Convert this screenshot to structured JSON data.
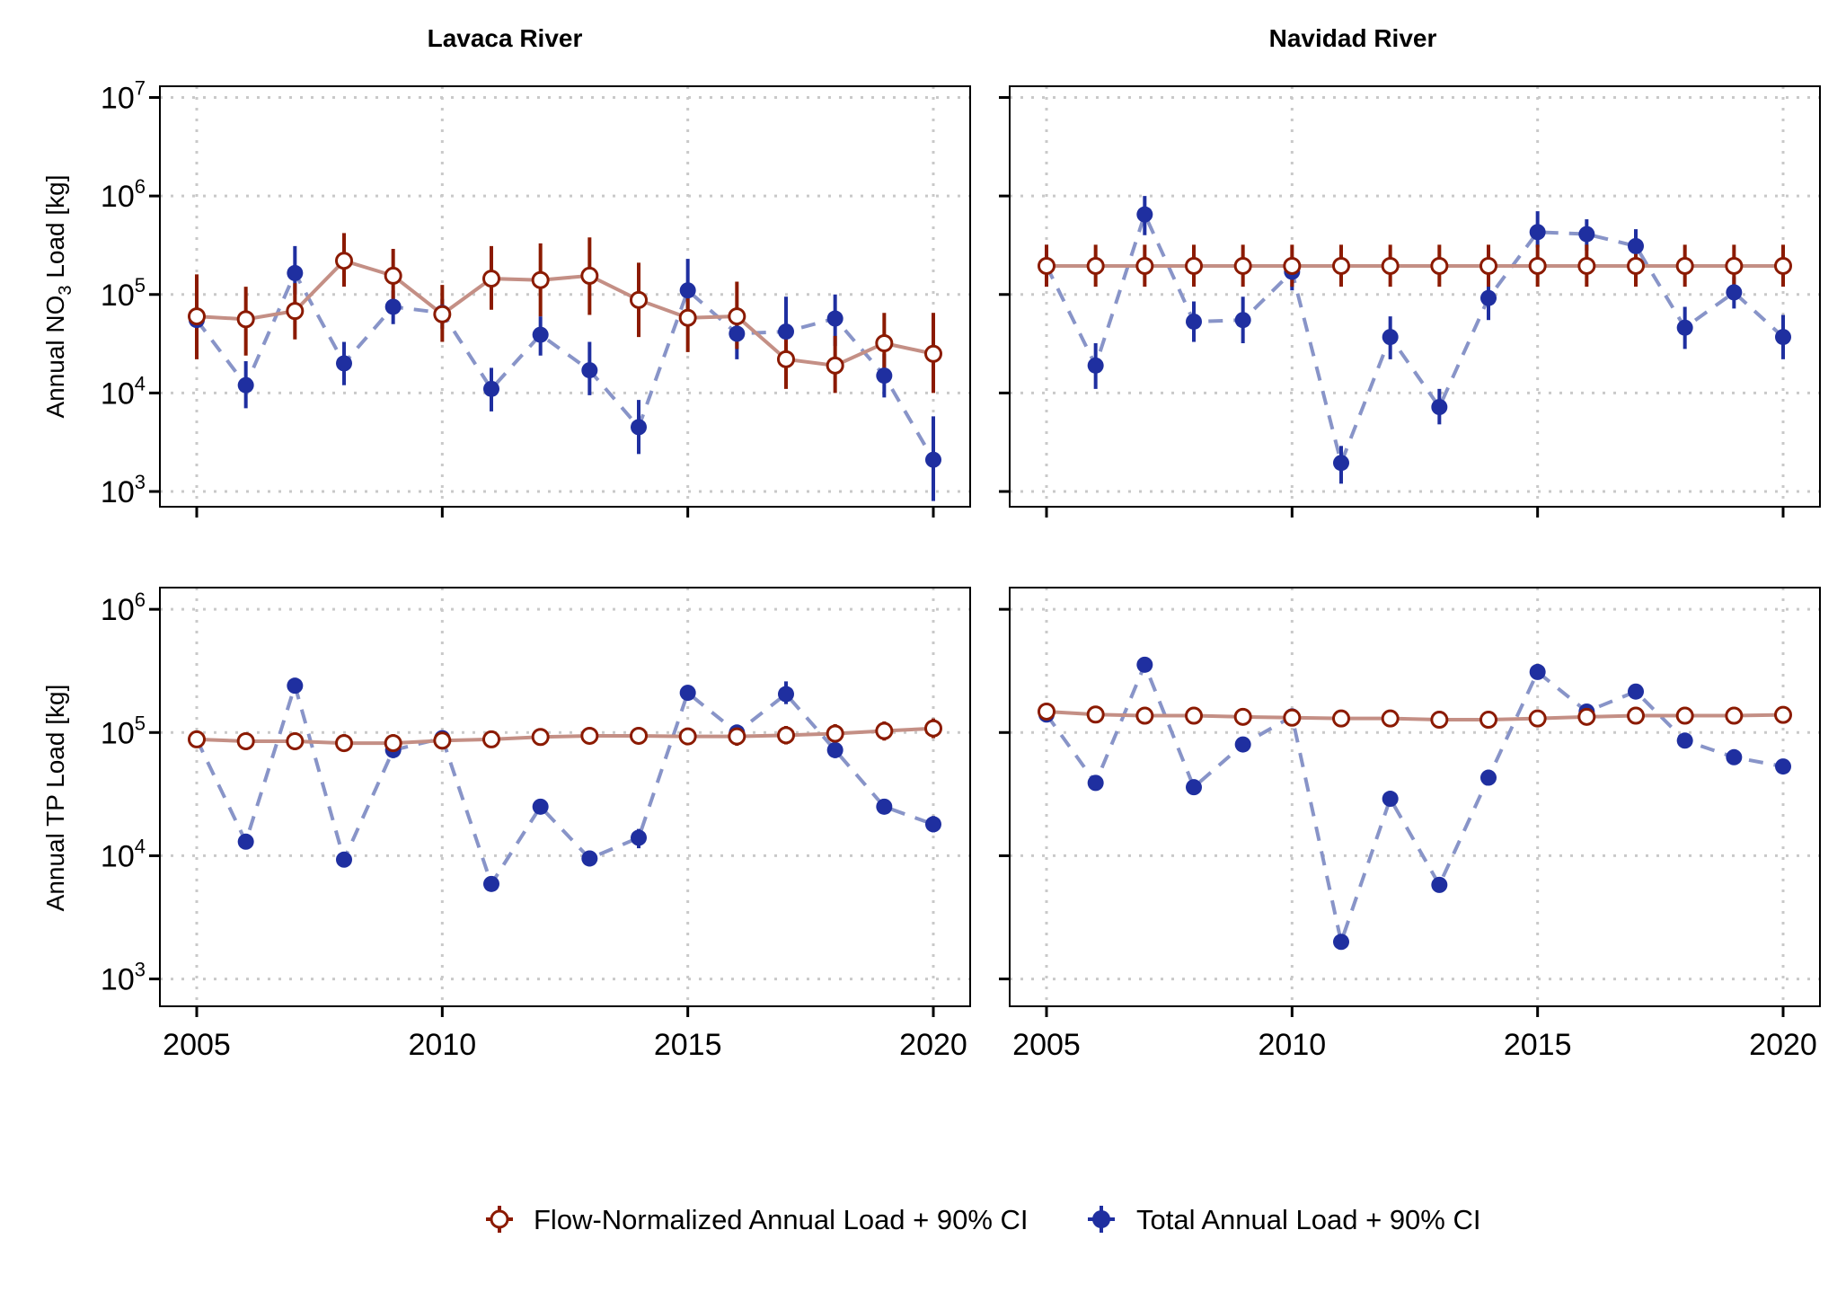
{
  "chart_data": {
    "type": "scatter",
    "facets": {
      "columns": [
        "Lavaca River",
        "Navidad River"
      ],
      "rows": [
        {
          "key": "no3",
          "ylabel_prefix": "Annual NO",
          "ylabel_sub": "3",
          "ylabel_suffix": " Load [kg]",
          "scale": "log10",
          "ylim": [
            700,
            13000000
          ],
          "ticks": [
            {
              "value": 1000,
              "base": "10",
              "exp": "3"
            },
            {
              "value": 10000,
              "base": "10",
              "exp": "4"
            },
            {
              "value": 100000,
              "base": "10",
              "exp": "5"
            },
            {
              "value": 1000000,
              "base": "10",
              "exp": "6"
            },
            {
              "value": 10000000,
              "base": "10",
              "exp": "7"
            }
          ]
        },
        {
          "key": "tp",
          "ylabel": "Annual TP Load [kg]",
          "scale": "log10",
          "ylim": [
            600,
            1500000
          ],
          "ticks": [
            {
              "value": 1000,
              "base": "10",
              "exp": "3"
            },
            {
              "value": 10000,
              "base": "10",
              "exp": "4"
            },
            {
              "value": 100000,
              "base": "10",
              "exp": "5"
            },
            {
              "value": 1000000,
              "base": "10",
              "exp": "6"
            }
          ]
        }
      ]
    },
    "x": [
      2005,
      2006,
      2007,
      2008,
      2009,
      2010,
      2011,
      2012,
      2013,
      2014,
      2015,
      2016,
      2017,
      2018,
      2019,
      2020
    ],
    "xlim": [
      2004.25,
      2020.75
    ],
    "xticks": [
      "2005",
      "2010",
      "2015",
      "2020"
    ],
    "grid": true,
    "legend": {
      "position": "bottom",
      "entries": [
        "Flow-Normalized Annual Load + 90% CI",
        "Total Annual Load + 90% CI"
      ]
    },
    "colors": {
      "flow_normalized": "#8b1a00",
      "flow_normalized_line": "#c48f85",
      "total": "#1f2fa0",
      "total_line": "#8894c8"
    },
    "panels": [
      {
        "row": "no3",
        "column": "Lavaca River",
        "series": [
          {
            "name": "Flow-Normalized Annual Load + 90% CI",
            "values": [
              60000,
              56000,
              68000,
              220000,
              155000,
              63000,
              145000,
              140000,
              155000,
              88000,
              58000,
              60000,
              22000,
              19000,
              32000,
              25000
            ],
            "lower": [
              22000,
              24000,
              35000,
              120000,
              80000,
              33000,
              70000,
              60000,
              62000,
              37000,
              26000,
              28000,
              11000,
              10000,
              15000,
              10000
            ],
            "upper": [
              160000,
              120000,
              130000,
              420000,
              290000,
              125000,
              310000,
              330000,
              380000,
              210000,
              130000,
              135000,
              45000,
              38000,
              65000,
              65000
            ]
          },
          {
            "name": "Total Annual Load + 90% CI",
            "values": [
              55000,
              12000,
              165000,
              20000,
              75000,
              65000,
              11000,
              39000,
              17000,
              4500,
              110000,
              40000,
              42000,
              57000,
              15000,
              2100
            ],
            "lower": [
              35000,
              7000,
              100000,
              12000,
              50000,
              45000,
              6500,
              24000,
              9500,
              2400,
              60000,
              22000,
              25000,
              30000,
              9000,
              800
            ],
            "upper": [
              80000,
              21000,
              310000,
              33000,
              110000,
              90000,
              18000,
              60000,
              33000,
              8500,
              230000,
              60000,
              95000,
              100000,
              25000,
              5800
            ]
          }
        ]
      },
      {
        "row": "no3",
        "column": "Navidad River",
        "series": [
          {
            "name": "Flow-Normalized Annual Load + 90% CI",
            "values": [
              195000,
              195000,
              195000,
              195000,
              195000,
              195000,
              195000,
              195000,
              195000,
              195000,
              195000,
              195000,
              195000,
              195000,
              195000,
              195000
            ],
            "lower": [
              120000,
              120000,
              120000,
              120000,
              120000,
              120000,
              120000,
              120000,
              120000,
              120000,
              120000,
              120000,
              120000,
              120000,
              120000,
              120000
            ],
            "upper": [
              320000,
              320000,
              320000,
              320000,
              320000,
              320000,
              320000,
              320000,
              320000,
              320000,
              320000,
              320000,
              320000,
              320000,
              320000,
              320000
            ]
          },
          {
            "name": "Total Annual Load + 90% CI",
            "values": [
              195000,
              19000,
              650000,
              53000,
              55000,
              170000,
              1950,
              37000,
              7200,
              92000,
              430000,
              410000,
              310000,
              46000,
              105000,
              37000
            ],
            "lower": [
              120000,
              11000,
              400000,
              33000,
              32000,
              110000,
              1200,
              22000,
              4800,
              55000,
              300000,
              280000,
              200000,
              28000,
              72000,
              22000
            ],
            "upper": [
              320000,
              32000,
              1000000,
              85000,
              95000,
              240000,
              2900,
              60000,
              11000,
              150000,
              700000,
              580000,
              460000,
              75000,
              150000,
              62000
            ]
          }
        ]
      },
      {
        "row": "tp",
        "column": "Lavaca River",
        "series": [
          {
            "name": "Flow-Normalized Annual Load + 90% CI",
            "values": [
              88000,
              85000,
              85000,
              82000,
              82000,
              86000,
              88000,
              92000,
              94000,
              94000,
              93000,
              93000,
              95000,
              98000,
              103000,
              108000
            ],
            "lower": [
              75000,
              72000,
              72000,
              70000,
              70000,
              73000,
              75000,
              79000,
              81000,
              81000,
              80000,
              78000,
              80000,
              82000,
              86000,
              90000
            ],
            "upper": [
              103000,
              100000,
              100000,
              97000,
              97000,
              101000,
              103000,
              107000,
              110000,
              110000,
              109000,
              110000,
              113000,
              117000,
              123000,
              130000
            ]
          },
          {
            "name": "Total Annual Load + 90% CI",
            "values": [
              88000,
              13000,
              240000,
              9300,
              72000,
              90000,
              5900,
              25000,
              9500,
              14000,
              210000,
              100000,
              205000,
              72000,
              25000,
              18000
            ],
            "lower": [
              80000,
              12000,
              210000,
              8500,
              62000,
              80000,
              5400,
              22000,
              8200,
              11500,
              190000,
              90000,
              170000,
              62000,
              22500,
              15500
            ],
            "upper": [
              96000,
              14500,
              275000,
              10000,
              82000,
              100000,
              6400,
              28000,
              11000,
              16500,
              235000,
              112000,
              260000,
              82000,
              28000,
              21000
            ]
          }
        ]
      },
      {
        "row": "tp",
        "column": "Navidad River",
        "series": [
          {
            "name": "Flow-Normalized Annual Load + 90% CI",
            "values": [
              148000,
              140000,
              137000,
              137000,
              134000,
              132000,
              130000,
              130000,
              127000,
              127000,
              130000,
              134000,
              137000,
              137000,
              137000,
              139000
            ],
            "lower": [
              128000,
              122000,
              119000,
              119000,
              116000,
              114000,
              112000,
              112000,
              110000,
              110000,
              112000,
              116000,
              119000,
              118000,
              117000,
              119000
            ],
            "upper": [
              170000,
              160000,
              157000,
              157000,
              154000,
              152000,
              150000,
              150000,
              147000,
              147000,
              150000,
              154000,
              157000,
              158000,
              160000,
              162000
            ]
          },
          {
            "name": "Total Annual Load + 90% CI",
            "values": [
              140000,
              39000,
              355000,
              36000,
              80000,
              135000,
              2000,
              29000,
              5800,
              43000,
              310000,
              148000,
              215000,
              86000,
              63000,
              53000
            ],
            "lower": [
              128000,
              36000,
              335000,
              33000,
              74000,
              125000,
              1850,
              27000,
              5400,
              40000,
              290000,
              136000,
              200000,
              78000,
              57000,
              47000
            ],
            "upper": [
              152000,
              42000,
              375000,
              39000,
              86000,
              145000,
              2150,
              31000,
              6200,
              46000,
              330000,
              160000,
              230000,
              94000,
              69000,
              59000
            ]
          }
        ]
      }
    ]
  }
}
